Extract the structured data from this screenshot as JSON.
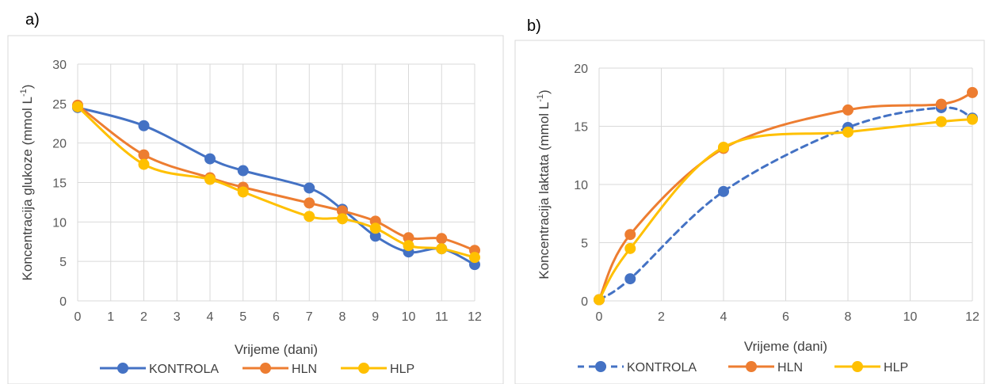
{
  "panels": {
    "a_label": "a)",
    "b_label": "b)"
  },
  "chart_data": [
    {
      "type": "line",
      "xlabel": "Vrijeme (dani)",
      "ylabel": "Koncentracija glukoze (mmol L",
      "ylabel_sup": "-1",
      "ylabel_close": ")",
      "ylim": [
        0,
        30
      ],
      "yticks": [
        0,
        5,
        10,
        15,
        20,
        25,
        30
      ],
      "x_axis_kind": "category",
      "categories": [
        "0",
        "1",
        "2",
        "3",
        "4",
        "5",
        "6",
        "7",
        "8",
        "9",
        "10",
        "11",
        "12"
      ],
      "grid": true,
      "legend": "bottom",
      "series": [
        {
          "name": "KONTROLA",
          "color": "#4472C4",
          "dash": false,
          "x": [
            0,
            2,
            4,
            5,
            7,
            8,
            9,
            10,
            11,
            12
          ],
          "y": [
            24.5,
            22.2,
            18.0,
            16.5,
            14.3,
            11.6,
            8.2,
            6.2,
            6.6,
            4.6
          ]
        },
        {
          "name": "HLN",
          "color": "#ED7D31",
          "dash": false,
          "x": [
            0,
            2,
            4,
            5,
            7,
            8,
            9,
            10,
            11,
            12
          ],
          "y": [
            24.8,
            18.5,
            15.6,
            14.4,
            12.4,
            11.4,
            10.1,
            8.0,
            7.9,
            6.4
          ]
        },
        {
          "name": "HLP",
          "color": "#FFC000",
          "dash": false,
          "x": [
            0,
            2,
            4,
            5,
            7,
            8,
            9,
            10,
            11,
            12
          ],
          "y": [
            24.6,
            17.3,
            15.4,
            13.8,
            10.7,
            10.4,
            9.2,
            7.0,
            6.6,
            5.5
          ]
        }
      ]
    },
    {
      "type": "scatter",
      "xlabel": "Vrijeme (dani)",
      "ylabel": "Koncentracija laktata (mmol L",
      "ylabel_sup": "-1",
      "ylabel_close": ")",
      "xlim": [
        0,
        12
      ],
      "xticks": [
        0,
        2,
        4,
        6,
        8,
        10,
        12
      ],
      "ylim": [
        0,
        20
      ],
      "yticks": [
        0,
        5,
        10,
        15,
        20
      ],
      "grid": true,
      "legend": "bottom",
      "series": [
        {
          "name": "KONTROLA",
          "color": "#4472C4",
          "dash": true,
          "x": [
            0,
            1,
            4,
            8,
            11,
            12
          ],
          "y": [
            0.1,
            1.9,
            9.4,
            14.9,
            16.6,
            15.7
          ]
        },
        {
          "name": "HLN",
          "color": "#ED7D31",
          "dash": false,
          "x": [
            0,
            1,
            4,
            8,
            11,
            12
          ],
          "y": [
            0.1,
            5.7,
            13.1,
            16.4,
            16.9,
            17.9
          ]
        },
        {
          "name": "HLP",
          "color": "#FFC000",
          "dash": false,
          "x": [
            0,
            1,
            4,
            8,
            11,
            12
          ],
          "y": [
            0.1,
            4.5,
            13.2,
            14.5,
            15.4,
            15.6
          ]
        }
      ]
    }
  ]
}
